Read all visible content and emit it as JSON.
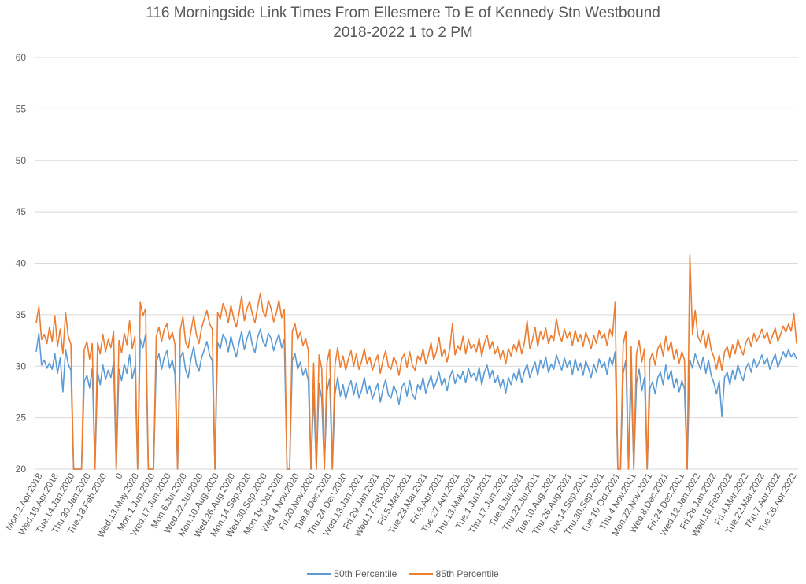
{
  "chart_data": {
    "type": "line",
    "title": "116 Morningside Link Times From Ellesmere To E of Kennedy Stn Westbound",
    "subtitle": "2018-2022 1 to 2 PM",
    "xlabel": "",
    "ylabel": "",
    "ylim": [
      20,
      60
    ],
    "yticks": [
      20,
      25,
      30,
      35,
      40,
      45,
      50,
      55,
      60
    ],
    "grid": true,
    "legend_position": "bottom",
    "x_tick_labels": [
      "Mon.2.Apr.2018",
      "Wed.18.Apr.2018",
      "Tue.14.Jan.2020",
      "Thu.30.Jan.2020",
      "Tue.18.Feb.2020",
      "0",
      "Wed.13.May.2020",
      "Mon.1.Jun.2020",
      "Wed.17.Jun.2020",
      "Mon.6.Jul.2020",
      "Wed.22.Jul.2020",
      "Mon.10.Aug.2020",
      "Wed.26.Aug.2020",
      "Mon.14.Sep.2020",
      "Wed.30.Sep.2020",
      "Mon.19.Oct.2020",
      "Wed.4.Nov.2020",
      "Fri.20.Nov.2020",
      "Tue.8.Dec.2020",
      "Thu.24.Dec.2020",
      "Wed.13.Jan.2021",
      "Fri.29.Jan.2021",
      "Wed.17.Feb.2021",
      "Fri.5.Mar.2021",
      "Tue.23.Mar.2021",
      "Fri.9.Apr.2021",
      "Tue.27.Apr.2021",
      "Thu.13.May.2021",
      "Tue.1.Jun.2021",
      "Thu.17.Jun.2021",
      "Tue.6.Jul.2021",
      "Thu.22.Jul.2021",
      "Tue.10.Aug.2021",
      "Thu.26.Aug.2021",
      "Tue.14.Sep.2021",
      "Thu.30.Sep.2021",
      "Tue.19.Oct.2021",
      "Thu.4.Nov.2021",
      "Mon.22.Nov.2021",
      "Wed.8.Dec.2021",
      "Fri.24.Dec.2021",
      "Wed.12.Jan.2022",
      "Fri.28.Jan.2022",
      "Wed.16.Feb.2022",
      "Fri.4.Mar.2022",
      "Tue.22.Mar.2022",
      "Thu.7.Apr.2022",
      "Tue.26.Apr.2022"
    ],
    "colors": {
      "p50": "#5b9bd5",
      "p85": "#ed7d31",
      "grid": "#d9d9d9",
      "axis_text": "#595959"
    },
    "series": [
      {
        "name": "50th Percentile",
        "values": [
          31.4,
          33.2,
          30.1,
          30.6,
          29.8,
          30.3,
          29.7,
          31.2,
          29.3,
          30.8,
          27.5,
          31.6,
          30.2,
          29.6,
          null,
          null,
          null,
          null,
          28.5,
          29.1,
          27.9,
          29.8,
          null,
          29.4,
          28.2,
          30.1,
          28.7,
          29.6,
          28.9,
          30.4,
          null,
          29.7,
          28.6,
          30.2,
          29.3,
          31.1,
          28.8,
          29.9,
          null,
          32.6,
          31.8,
          33.1,
          null,
          null,
          null,
          30.4,
          31.2,
          29.7,
          30.9,
          31.5,
          29.8,
          30.6,
          29.2,
          null,
          30.8,
          31.4,
          29.6,
          28.9,
          30.7,
          31.9,
          30.2,
          29.5,
          30.8,
          31.6,
          32.4,
          31.1,
          30.5,
          null,
          32.3,
          31.7,
          33.1,
          32.6,
          31.4,
          32.9,
          31.8,
          30.9,
          32.2,
          33.4,
          31.6,
          32.7,
          33.5,
          32.1,
          31.3,
          32.8,
          33.6,
          32.4,
          31.9,
          33.2,
          32.7,
          31.5,
          32.4,
          33.1,
          31.8,
          32.6,
          null,
          null,
          30.6,
          31.2,
          29.7,
          30.4,
          29.1,
          29.8,
          28.6,
          null,
          27.4,
          null,
          28.3,
          26.9,
          null,
          27.6,
          28.8,
          null,
          27.3,
          28.9,
          27.1,
          28.2,
          26.8,
          27.9,
          28.6,
          27.2,
          28.4,
          26.9,
          27.7,
          28.9,
          27.4,
          28.1,
          26.8,
          27.6,
          28.3,
          26.5,
          27.8,
          28.7,
          27.2,
          26.9,
          28.1,
          27.5,
          26.3,
          27.9,
          28.4,
          27.1,
          28.6,
          27.3,
          26.8,
          28.2,
          27.7,
          28.9,
          27.4,
          28.3,
          29.1,
          27.8,
          28.5,
          29.4,
          28.1,
          28.8,
          27.6,
          28.9,
          29.6,
          28.3,
          29.2,
          28.7,
          29.5,
          28.4,
          29.8,
          28.9,
          29.3,
          28.6,
          29.9,
          28.2,
          29.4,
          30.1,
          28.8,
          29.6,
          28.4,
          29.1,
          27.9,
          28.7,
          27.4,
          28.9,
          28.2,
          29.3,
          28.6,
          29.8,
          28.4,
          29.5,
          30.2,
          28.9,
          29.7,
          30.4,
          29.1,
          30.6,
          29.8,
          30.9,
          29.4,
          30.2,
          29.7,
          31.1,
          30.3,
          29.6,
          30.8,
          29.9,
          30.5,
          29.2,
          30.7,
          29.6,
          30.3,
          29.1,
          30.5,
          29.8,
          28.9,
          30.2,
          29.4,
          30.7,
          29.9,
          30.4,
          29.2,
          30.8,
          30.1,
          31.4,
          null,
          null,
          29.3,
          30.6,
          null,
          29.1,
          null,
          28.4,
          29.7,
          27.6,
          28.9,
          null,
          27.8,
          28.5,
          27.3,
          28.9,
          29.4,
          28.2,
          30.1,
          28.7,
          29.6,
          27.9,
          28.8,
          27.5,
          28.6,
          27.8,
          null,
          30.6,
          29.8,
          31.2,
          30.4,
          29.7,
          30.9,
          29.3,
          30.6,
          29.1,
          28.4,
          27.3,
          28.6,
          25.1,
          28.9,
          29.4,
          28.2,
          29.6,
          28.7,
          30.1,
          29.2,
          28.6,
          29.8,
          30.3,
          29.4,
          30.7,
          29.9,
          30.4,
          31.1,
          30.2,
          30.8,
          29.7,
          30.5,
          31.2,
          29.9,
          30.6,
          31.4,
          30.8,
          31.6,
          30.9,
          31.3,
          30.7
        ]
      },
      {
        "name": "85th Percentile",
        "values": [
          34.2,
          35.8,
          32.6,
          33.1,
          32.2,
          33.8,
          32.4,
          34.9,
          31.9,
          33.6,
          31.2,
          35.2,
          32.9,
          32.1,
          null,
          null,
          null,
          null,
          31.6,
          32.4,
          30.7,
          32.2,
          null,
          32.3,
          31.2,
          33.1,
          31.4,
          32.6,
          31.8,
          33.4,
          null,
          32.5,
          31.3,
          33.2,
          32.1,
          34.4,
          31.7,
          32.9,
          null,
          36.2,
          34.9,
          35.6,
          null,
          null,
          null,
          32.9,
          33.8,
          32.4,
          33.6,
          34.1,
          32.6,
          33.3,
          32.1,
          null,
          33.5,
          34.8,
          32.3,
          31.8,
          33.4,
          34.9,
          33.1,
          32.2,
          33.7,
          34.6,
          35.4,
          34.1,
          33.6,
          null,
          35.2,
          34.6,
          36.1,
          35.4,
          34.2,
          35.9,
          34.7,
          33.8,
          35.1,
          36.8,
          34.4,
          35.6,
          36.3,
          35.1,
          34.2,
          35.7,
          37.1,
          35.3,
          34.8,
          36.4,
          35.6,
          34.3,
          35.2,
          36.4,
          34.7,
          35.5,
          null,
          null,
          33.4,
          34.1,
          32.6,
          33.3,
          32.0,
          32.7,
          31.5,
          null,
          30.3,
          null,
          31.1,
          29.8,
          null,
          30.4,
          31.6,
          null,
          30.1,
          31.8,
          29.9,
          31.0,
          29.6,
          30.7,
          31.5,
          30.0,
          31.2,
          29.7,
          30.5,
          31.7,
          30.2,
          30.9,
          29.6,
          30.4,
          31.1,
          29.3,
          30.6,
          31.5,
          30.0,
          29.7,
          30.9,
          30.3,
          29.1,
          30.7,
          31.2,
          29.9,
          31.4,
          30.1,
          29.6,
          31.0,
          30.5,
          31.7,
          30.2,
          31.1,
          32.3,
          30.6,
          31.4,
          32.8,
          30.9,
          31.6,
          30.4,
          31.7,
          34.1,
          31.1,
          32.0,
          31.5,
          32.9,
          31.2,
          32.6,
          31.7,
          32.1,
          31.4,
          32.7,
          31.0,
          32.2,
          33.0,
          31.6,
          32.4,
          31.2,
          31.9,
          30.7,
          31.5,
          30.2,
          31.7,
          31.0,
          32.1,
          31.4,
          32.6,
          31.2,
          32.3,
          34.4,
          31.7,
          32.5,
          33.8,
          31.9,
          33.4,
          32.6,
          33.7,
          32.2,
          33.0,
          32.5,
          34.6,
          33.1,
          32.4,
          33.6,
          32.7,
          33.3,
          32.0,
          33.5,
          32.4,
          33.1,
          31.9,
          33.3,
          32.6,
          31.7,
          33.0,
          32.2,
          33.5,
          32.7,
          33.2,
          32.0,
          33.6,
          32.9,
          36.2,
          null,
          null,
          32.1,
          33.4,
          null,
          31.9,
          null,
          31.2,
          32.5,
          30.4,
          31.7,
          null,
          30.6,
          31.3,
          30.1,
          31.7,
          32.2,
          31.0,
          32.9,
          31.5,
          32.4,
          30.7,
          31.6,
          30.3,
          31.4,
          30.6,
          null,
          40.8,
          33.1,
          35.4,
          32.9,
          32.3,
          33.5,
          31.8,
          33.2,
          31.6,
          30.9,
          29.7,
          31.1,
          29.6,
          31.4,
          31.9,
          30.7,
          32.1,
          31.2,
          32.6,
          31.7,
          31.1,
          32.3,
          32.8,
          31.9,
          33.2,
          32.4,
          32.9,
          33.6,
          32.7,
          33.3,
          32.2,
          33.0,
          33.7,
          32.4,
          33.1,
          33.9,
          33.3,
          34.1,
          33.4,
          35.1,
          32.2
        ]
      }
    ]
  }
}
